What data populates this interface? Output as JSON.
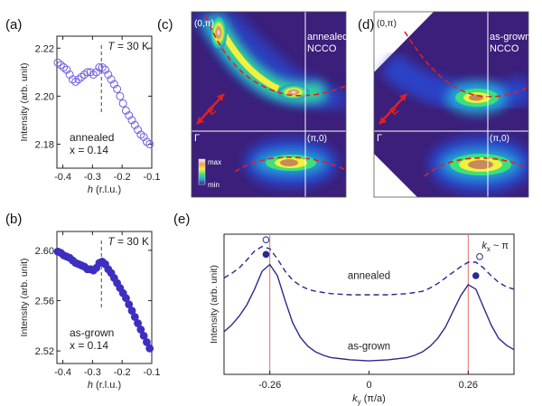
{
  "chart_data": [
    {
      "panel": "(a)",
      "type": "scatter",
      "marker": "open-circle",
      "color": "#6f5fe0",
      "ylabel": "Intensity (arb. unit)",
      "xlabel": "h (r.l.u.)",
      "xlim": [
        -0.42,
        -0.1
      ],
      "ylim": [
        2.17,
        2.225
      ],
      "xticks": [
        -0.4,
        -0.3,
        -0.2,
        -0.1
      ],
      "xtick_labels": [
        "-0.4",
        "-0.3",
        "-0.2",
        "-0.1"
      ],
      "yticks": [
        2.18,
        2.2,
        2.22
      ],
      "ytick_labels": [
        "2.18",
        "2.20",
        "2.22"
      ],
      "temperature_label": "T = 30 K",
      "dashed_line_x": -0.27,
      "annotation_lines": [
        "annealed",
        "x = 0.14"
      ],
      "points": [
        [
          -0.417,
          2.214
        ],
        [
          -0.407,
          2.213
        ],
        [
          -0.397,
          2.212
        ],
        [
          -0.387,
          2.211
        ],
        [
          -0.377,
          2.209
        ],
        [
          -0.367,
          2.207
        ],
        [
          -0.357,
          2.206
        ],
        [
          -0.347,
          2.207
        ],
        [
          -0.337,
          2.208
        ],
        [
          -0.327,
          2.209
        ],
        [
          -0.317,
          2.21
        ],
        [
          -0.307,
          2.21
        ],
        [
          -0.297,
          2.209
        ],
        [
          -0.287,
          2.21
        ],
        [
          -0.277,
          2.212
        ],
        [
          -0.267,
          2.212
        ],
        [
          -0.257,
          2.211
        ],
        [
          -0.247,
          2.209
        ],
        [
          -0.237,
          2.207
        ],
        [
          -0.227,
          2.205
        ],
        [
          -0.217,
          2.203
        ],
        [
          -0.207,
          2.2
        ],
        [
          -0.197,
          2.197
        ],
        [
          -0.187,
          2.194
        ],
        [
          -0.177,
          2.192
        ],
        [
          -0.167,
          2.19
        ],
        [
          -0.157,
          2.188
        ],
        [
          -0.147,
          2.186
        ],
        [
          -0.137,
          2.184
        ],
        [
          -0.127,
          2.183
        ],
        [
          -0.117,
          2.181
        ],
        [
          -0.107,
          2.18
        ]
      ]
    },
    {
      "panel": "(b)",
      "type": "scatter",
      "marker": "filled-circle",
      "color": "#3d2fc0",
      "ylabel": "Intensity (arb. unit)",
      "xlabel": "h (r.l.u.)",
      "xlim": [
        -0.42,
        -0.1
      ],
      "ylim": [
        2.51,
        2.615
      ],
      "xticks": [
        -0.4,
        -0.3,
        -0.2,
        -0.1
      ],
      "xtick_labels": [
        "-0.4",
        "-0.3",
        "-0.2",
        "-0.1"
      ],
      "yticks": [
        2.52,
        2.56,
        2.6
      ],
      "ytick_labels": [
        "2.52",
        "2.56",
        "2.60"
      ],
      "temperature_label": "T = 30 K",
      "dashed_line_x": -0.27,
      "annotation_lines": [
        "as-grown",
        "x = 0.14"
      ],
      "points": [
        [
          -0.417,
          2.599
        ],
        [
          -0.407,
          2.598
        ],
        [
          -0.397,
          2.596
        ],
        [
          -0.387,
          2.595
        ],
        [
          -0.377,
          2.594
        ],
        [
          -0.367,
          2.592
        ],
        [
          -0.357,
          2.59
        ],
        [
          -0.347,
          2.589
        ],
        [
          -0.337,
          2.588
        ],
        [
          -0.327,
          2.587
        ],
        [
          -0.317,
          2.585
        ],
        [
          -0.307,
          2.585
        ],
        [
          -0.297,
          2.584
        ],
        [
          -0.287,
          2.586
        ],
        [
          -0.277,
          2.59
        ],
        [
          -0.267,
          2.591
        ],
        [
          -0.257,
          2.589
        ],
        [
          -0.247,
          2.585
        ],
        [
          -0.237,
          2.582
        ],
        [
          -0.227,
          2.578
        ],
        [
          -0.217,
          2.574
        ],
        [
          -0.207,
          2.57
        ],
        [
          -0.197,
          2.566
        ],
        [
          -0.187,
          2.562
        ],
        [
          -0.177,
          2.557
        ],
        [
          -0.167,
          2.552
        ],
        [
          -0.157,
          2.547
        ],
        [
          -0.147,
          2.542
        ],
        [
          -0.137,
          2.537
        ],
        [
          -0.127,
          2.532
        ],
        [
          -0.117,
          2.527
        ],
        [
          -0.107,
          2.522
        ]
      ]
    },
    {
      "panel": "(c)",
      "type": "heatmap",
      "colormap": [
        "#3b1f7a",
        "#2b43c8",
        "#22a8d8",
        "#3ee07a",
        "#f2f040",
        "#f0a050",
        "#f2f2f2"
      ],
      "labels": {
        "top_left": "(0,π)",
        "top_right_lines": [
          "annealed",
          "NCCO"
        ],
        "gamma": "Γ",
        "pi0": "(π,0)",
        "arrow": "E",
        "colorbar_max": "max",
        "colorbar_min": "min"
      },
      "dashed_curve_color": "#e02020"
    },
    {
      "panel": "(d)",
      "type": "heatmap",
      "colormap": [
        "#3b1f7a",
        "#2b43c8",
        "#22a8d8",
        "#3ee07a",
        "#f2f040",
        "#f0a050",
        "#f2f2f2"
      ],
      "labels": {
        "top_left": "(0,π)",
        "top_right_lines": [
          "as-grown",
          "NCCO"
        ],
        "gamma": "Γ",
        "pi0": "(π,0)",
        "arrow": "E"
      },
      "dashed_curve_color": "#e02020"
    },
    {
      "panel": "(e)",
      "type": "line",
      "ylabel": "Intensity (arb. unit)",
      "xlabel": "ky (π/a)",
      "xlim": [
        -0.38,
        0.38
      ],
      "ylim": [
        0,
        1.25
      ],
      "xticks": [
        -0.26,
        0,
        0.26
      ],
      "xtick_labels": [
        "-0.26",
        "0",
        "0.26"
      ],
      "vlines_x": [
        -0.26,
        0.26
      ],
      "vline_color": "#e07070",
      "corner_label": "kx ~ π",
      "series": [
        {
          "name": "annealed",
          "style": "dashed",
          "color": "#2a2a8a",
          "x": [
            -0.38,
            -0.36,
            -0.34,
            -0.32,
            -0.3,
            -0.28,
            -0.26,
            -0.24,
            -0.22,
            -0.2,
            -0.18,
            -0.16,
            -0.14,
            -0.12,
            -0.1,
            -0.05,
            0,
            0.05,
            0.1,
            0.12,
            0.14,
            0.16,
            0.18,
            0.2,
            0.22,
            0.24,
            0.26,
            0.28,
            0.3,
            0.32,
            0.34,
            0.36,
            0.38
          ],
          "y": [
            0.86,
            0.9,
            0.95,
            1.02,
            1.1,
            1.14,
            1.12,
            1.03,
            0.92,
            0.84,
            0.79,
            0.76,
            0.74,
            0.73,
            0.72,
            0.71,
            0.71,
            0.71,
            0.72,
            0.73,
            0.74,
            0.77,
            0.81,
            0.86,
            0.91,
            0.96,
            1.0,
            1.0,
            0.95,
            0.88,
            0.82,
            0.78,
            0.76
          ]
        },
        {
          "name": "as-grown",
          "style": "solid",
          "color": "#2a2a8a",
          "x": [
            -0.38,
            -0.36,
            -0.34,
            -0.32,
            -0.3,
            -0.28,
            -0.26,
            -0.24,
            -0.22,
            -0.2,
            -0.18,
            -0.16,
            -0.14,
            -0.12,
            -0.1,
            -0.05,
            0,
            0.05,
            0.1,
            0.12,
            0.14,
            0.16,
            0.18,
            0.2,
            0.22,
            0.24,
            0.26,
            0.28,
            0.3,
            0.32,
            0.34,
            0.36,
            0.38
          ],
          "y": [
            0.38,
            0.44,
            0.52,
            0.62,
            0.76,
            0.92,
            0.98,
            0.88,
            0.66,
            0.46,
            0.33,
            0.25,
            0.2,
            0.17,
            0.15,
            0.13,
            0.12,
            0.13,
            0.15,
            0.17,
            0.2,
            0.25,
            0.32,
            0.42,
            0.56,
            0.7,
            0.8,
            0.76,
            0.6,
            0.44,
            0.32,
            0.26,
            0.22
          ]
        }
      ],
      "markers": [
        {
          "x": -0.27,
          "y": 1.2,
          "style": "open"
        },
        {
          "x": -0.27,
          "y": 1.07,
          "style": "filled"
        },
        {
          "x": 0.29,
          "y": 1.05,
          "style": "open"
        },
        {
          "x": 0.28,
          "y": 0.88,
          "style": "filled"
        }
      ]
    }
  ]
}
